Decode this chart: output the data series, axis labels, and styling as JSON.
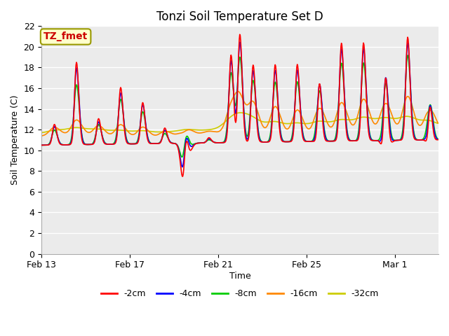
{
  "title": "Tonzi Soil Temperature Set D",
  "xlabel": "Time",
  "ylabel": "Soil Temperature (C)",
  "annotation": "TZ_fmet",
  "annotation_color": "#cc0000",
  "annotation_bg": "#ffffcc",
  "annotation_border": "#999900",
  "ylim": [
    0,
    22
  ],
  "yticks": [
    0,
    2,
    4,
    6,
    8,
    10,
    12,
    14,
    16,
    18,
    20,
    22
  ],
  "xtick_labels": [
    "Feb 13",
    "Feb 17",
    "Feb 21",
    "Feb 25",
    "Mar 1"
  ],
  "legend_labels": [
    "-2cm",
    "-4cm",
    "-8cm",
    "-16cm",
    "-32cm"
  ],
  "legend_colors": [
    "#ff0000",
    "#0000ff",
    "#00cc00",
    "#ff8800",
    "#cccc00"
  ],
  "plot_bg": "#ebebeb",
  "title_fontsize": 12,
  "axis_fontsize": 9,
  "tick_fontsize": 9,
  "legend_fontsize": 9,
  "line_width": 1.2
}
